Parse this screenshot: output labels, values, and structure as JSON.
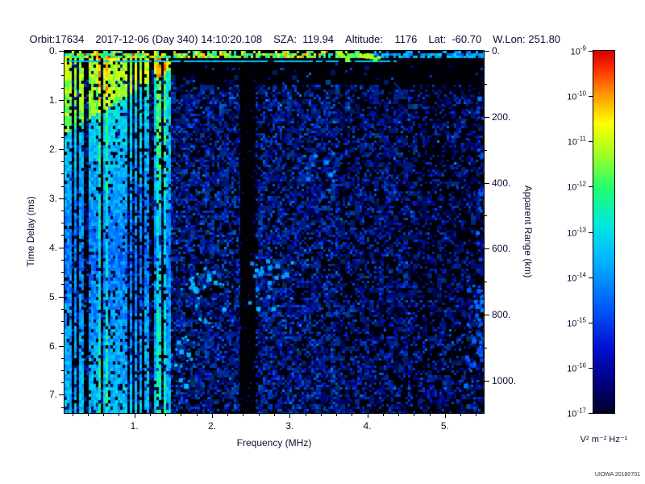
{
  "header": {
    "orbit": "Orbit:17634",
    "datetime": "2017-12-06 (Day 340) 14:10:20.108",
    "sza": "SZA:  119.94",
    "altitude": "Altitude:    1176",
    "lat": "Lat:  -60.70",
    "wlon": "W.Lon: 251.80"
  },
  "chart_data": {
    "type": "heatmap",
    "title": "",
    "xlabel": "Frequency (MHz)",
    "ylabel_left": "Time Delay (ms)",
    "ylabel_right": "Apparent Range (km)",
    "x_range_mhz": [
      0.1,
      5.5
    ],
    "x_ticks": [
      1,
      2,
      3,
      4,
      5
    ],
    "x_tick_labels": [
      "1.",
      "2.",
      "3.",
      "4.",
      "5."
    ],
    "y_range_ms": [
      0,
      7.37
    ],
    "y_ticks": [
      0,
      1,
      2,
      3,
      4,
      5,
      6,
      7
    ],
    "y_tick_labels": [
      "0.",
      "1.",
      "2.",
      "3.",
      "4.",
      "5.",
      "6.",
      "7."
    ],
    "right_range_km": [
      0,
      1098
    ],
    "right_ticks": [
      0,
      200,
      400,
      600,
      800,
      1000
    ],
    "right_tick_labels": [
      "0.",
      "200.",
      "400.",
      "600.",
      "800.",
      "1000."
    ],
    "colorbar": {
      "unit_label": "V² m⁻² Hz⁻¹",
      "scale": "log",
      "range_top": "1e-9",
      "range_bottom": "1e-17",
      "tick_base": "10",
      "tick_exponents": [
        "-9",
        "-10",
        "-11",
        "-12",
        "-13",
        "-14",
        "-15",
        "-16",
        "-17"
      ],
      "stops": [
        {
          "t": 0.0,
          "color": "#000028"
        },
        {
          "t": 0.08,
          "color": "#000080"
        },
        {
          "t": 0.18,
          "color": "#0010d0"
        },
        {
          "t": 0.3,
          "color": "#0060ff"
        },
        {
          "t": 0.42,
          "color": "#00b4ff"
        },
        {
          "t": 0.52,
          "color": "#00e8e0"
        },
        {
          "t": 0.62,
          "color": "#20ff70"
        },
        {
          "t": 0.72,
          "color": "#a8ff20"
        },
        {
          "t": 0.8,
          "color": "#ffff00"
        },
        {
          "t": 0.88,
          "color": "#ff9800"
        },
        {
          "t": 0.95,
          "color": "#ff3000"
        },
        {
          "t": 1.0,
          "color": "#d80000"
        }
      ]
    },
    "credit": "UIOWA 20180701",
    "features": [
      "bright echo band at zero time delay across all frequencies",
      "strong vertical plasma-harmonic striping below ~1.45 MHz, brightest (green) at low delay",
      "bright cyan full-height lines near 1.3-1.4 MHz",
      "dark attenuation band near 2.4 MHz spanning all delays",
      "diffuse low-level blue speckle across 1.5-5.5 MHz, sparser at high frequency",
      "mostly black (no echo) region at low delay for frequencies above ~1.5 MHz"
    ],
    "render": {
      "seed": 20180701,
      "zones": [
        {
          "f0": 0.1,
          "f1": 1.45,
          "density": 0.2,
          "imin": 0.14,
          "imax": 0.3
        },
        {
          "f0": 1.45,
          "f1": 2.36,
          "density": 0.42,
          "imin": 0.13,
          "imax": 0.33
        },
        {
          "f0": 2.36,
          "f1": 2.54,
          "density": 0.06,
          "imin": 0.1,
          "imax": 0.22
        },
        {
          "f0": 2.54,
          "f1": 3.6,
          "density": 0.42,
          "imin": 0.13,
          "imax": 0.32
        },
        {
          "f0": 3.6,
          "f1": 4.6,
          "density": 0.33,
          "imin": 0.12,
          "imax": 0.3
        },
        {
          "f0": 4.6,
          "f1": 5.5,
          "density": 0.26,
          "imin": 0.1,
          "imax": 0.29
        }
      ],
      "upper_dark": {
        "d_max": 0.65,
        "f_min": 1.5,
        "factor": 0.15
      },
      "stripes": {
        "f_min": 0.1,
        "f_max": 1.45,
        "gap_prob": 0.28,
        "strong_prob": 0.1,
        "top_i": 0.55,
        "mid_i": 0.33,
        "bot_i": 0.45,
        "forced_strong_f": [
          1.3,
          1.37
        ]
      },
      "wedge": {
        "f_end": 1.55,
        "d_at_fmin": 1.65,
        "d_at_fend": 0.25,
        "boost": 0.2
      },
      "top_band": {
        "d_max": 0.13,
        "density": 0.78,
        "imin": 0.5,
        "imax": 0.88,
        "red_prob": 0.02,
        "fade_f": 4.0
      },
      "cyan_line": {
        "d": 0.2,
        "f_max": 4.35,
        "i": 0.45
      },
      "dark_band": {
        "f0": 2.36,
        "f1": 2.54
      },
      "bright_blobs": [
        {
          "f": 1.95,
          "d": 5.0,
          "rf": 0.25,
          "rd": 0.6,
          "n": 26,
          "i": 0.42
        },
        {
          "f": 2.75,
          "d": 4.8,
          "rf": 0.3,
          "rd": 0.6,
          "n": 22,
          "i": 0.4
        },
        {
          "f": 1.62,
          "d": 6.3,
          "rf": 0.12,
          "rd": 0.5,
          "n": 14,
          "i": 0.45
        },
        {
          "f": 3.4,
          "d": 2.2,
          "rf": 0.25,
          "rd": 0.5,
          "n": 14,
          "i": 0.34
        },
        {
          "f": 3.9,
          "d": 0.1,
          "rf": 0.25,
          "rd": 0.06,
          "n": 22,
          "i": 0.7
        },
        {
          "f": 5.35,
          "d": 5.8,
          "rf": 0.12,
          "rd": 1.2,
          "n": 30,
          "i": 0.3
        },
        {
          "f": 5.45,
          "d": 3.5,
          "rf": 0.05,
          "rd": 3.0,
          "n": 36,
          "i": 0.3
        }
      ]
    }
  }
}
